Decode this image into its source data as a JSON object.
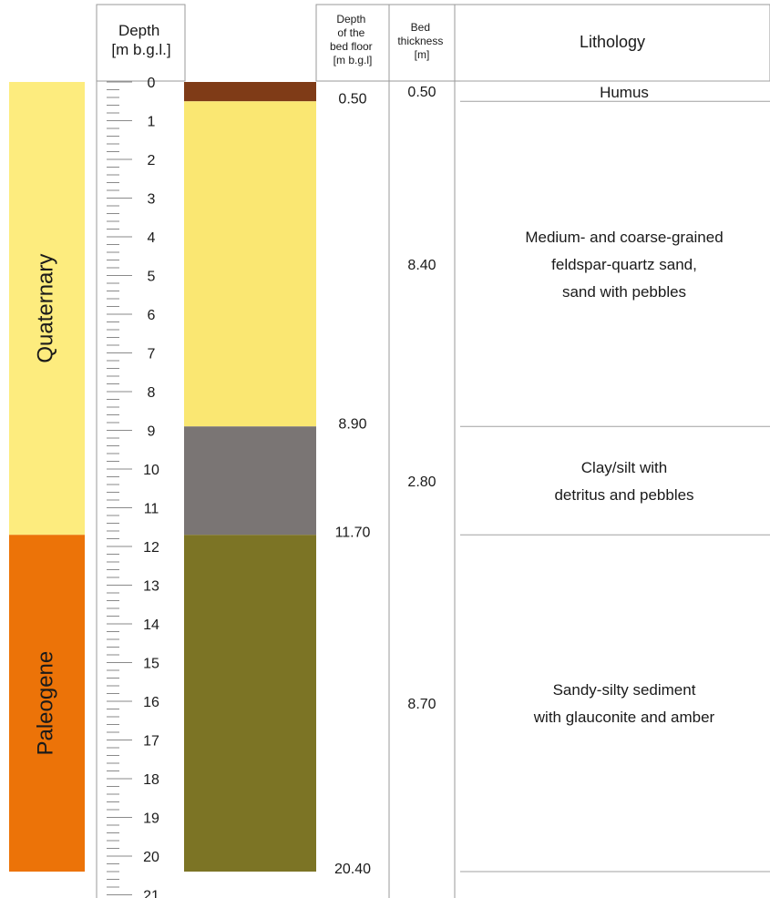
{
  "headers": {
    "depth": [
      "Depth",
      "[m b.g.l.]"
    ],
    "bed_floor": [
      "Depth",
      "of the",
      "bed floor",
      "[m b.g.l]"
    ],
    "bed_thickness": [
      "Bed",
      "thickness",
      "[m]"
    ],
    "lithology": "Lithology"
  },
  "periods": [
    {
      "name": "Quaternary",
      "top": 0,
      "bottom": 11.7,
      "color": "#FDEC7E"
    },
    {
      "name": "Paleogene",
      "top": 11.7,
      "bottom": 20.4,
      "color": "#EC7308"
    }
  ],
  "depth_scale": {
    "min": 0,
    "max": 21,
    "labels": [
      "0",
      "1",
      "2",
      "3",
      "4",
      "5",
      "6",
      "7",
      "8",
      "9",
      "10",
      "11",
      "12",
      "13",
      "14",
      "15",
      "16",
      "17",
      "18",
      "19",
      "20",
      "21"
    ]
  },
  "layers": [
    {
      "top": 0,
      "bottom": 0.5,
      "color": "#7F3B17",
      "floor": "0.50",
      "thickness": "0.50",
      "lithology": [
        "Humus"
      ]
    },
    {
      "top": 0.5,
      "bottom": 8.9,
      "color": "#FAE772",
      "floor": "8.90",
      "thickness": "8.40",
      "lithology": [
        "Medium- and coarse-grained",
        "feldspar-quartz sand,",
        "sand with pebbles"
      ]
    },
    {
      "top": 8.9,
      "bottom": 11.7,
      "color": "#7A7574",
      "floor": "11.70",
      "thickness": "2.80",
      "lithology": [
        "Clay/silt with",
        "detritus and pebbles"
      ]
    },
    {
      "top": 11.7,
      "bottom": 20.4,
      "color": "#7C7425",
      "floor": "20.40",
      "thickness": "8.70",
      "lithology": [
        "Sandy-silty sediment",
        "with glauconite and amber"
      ]
    }
  ]
}
